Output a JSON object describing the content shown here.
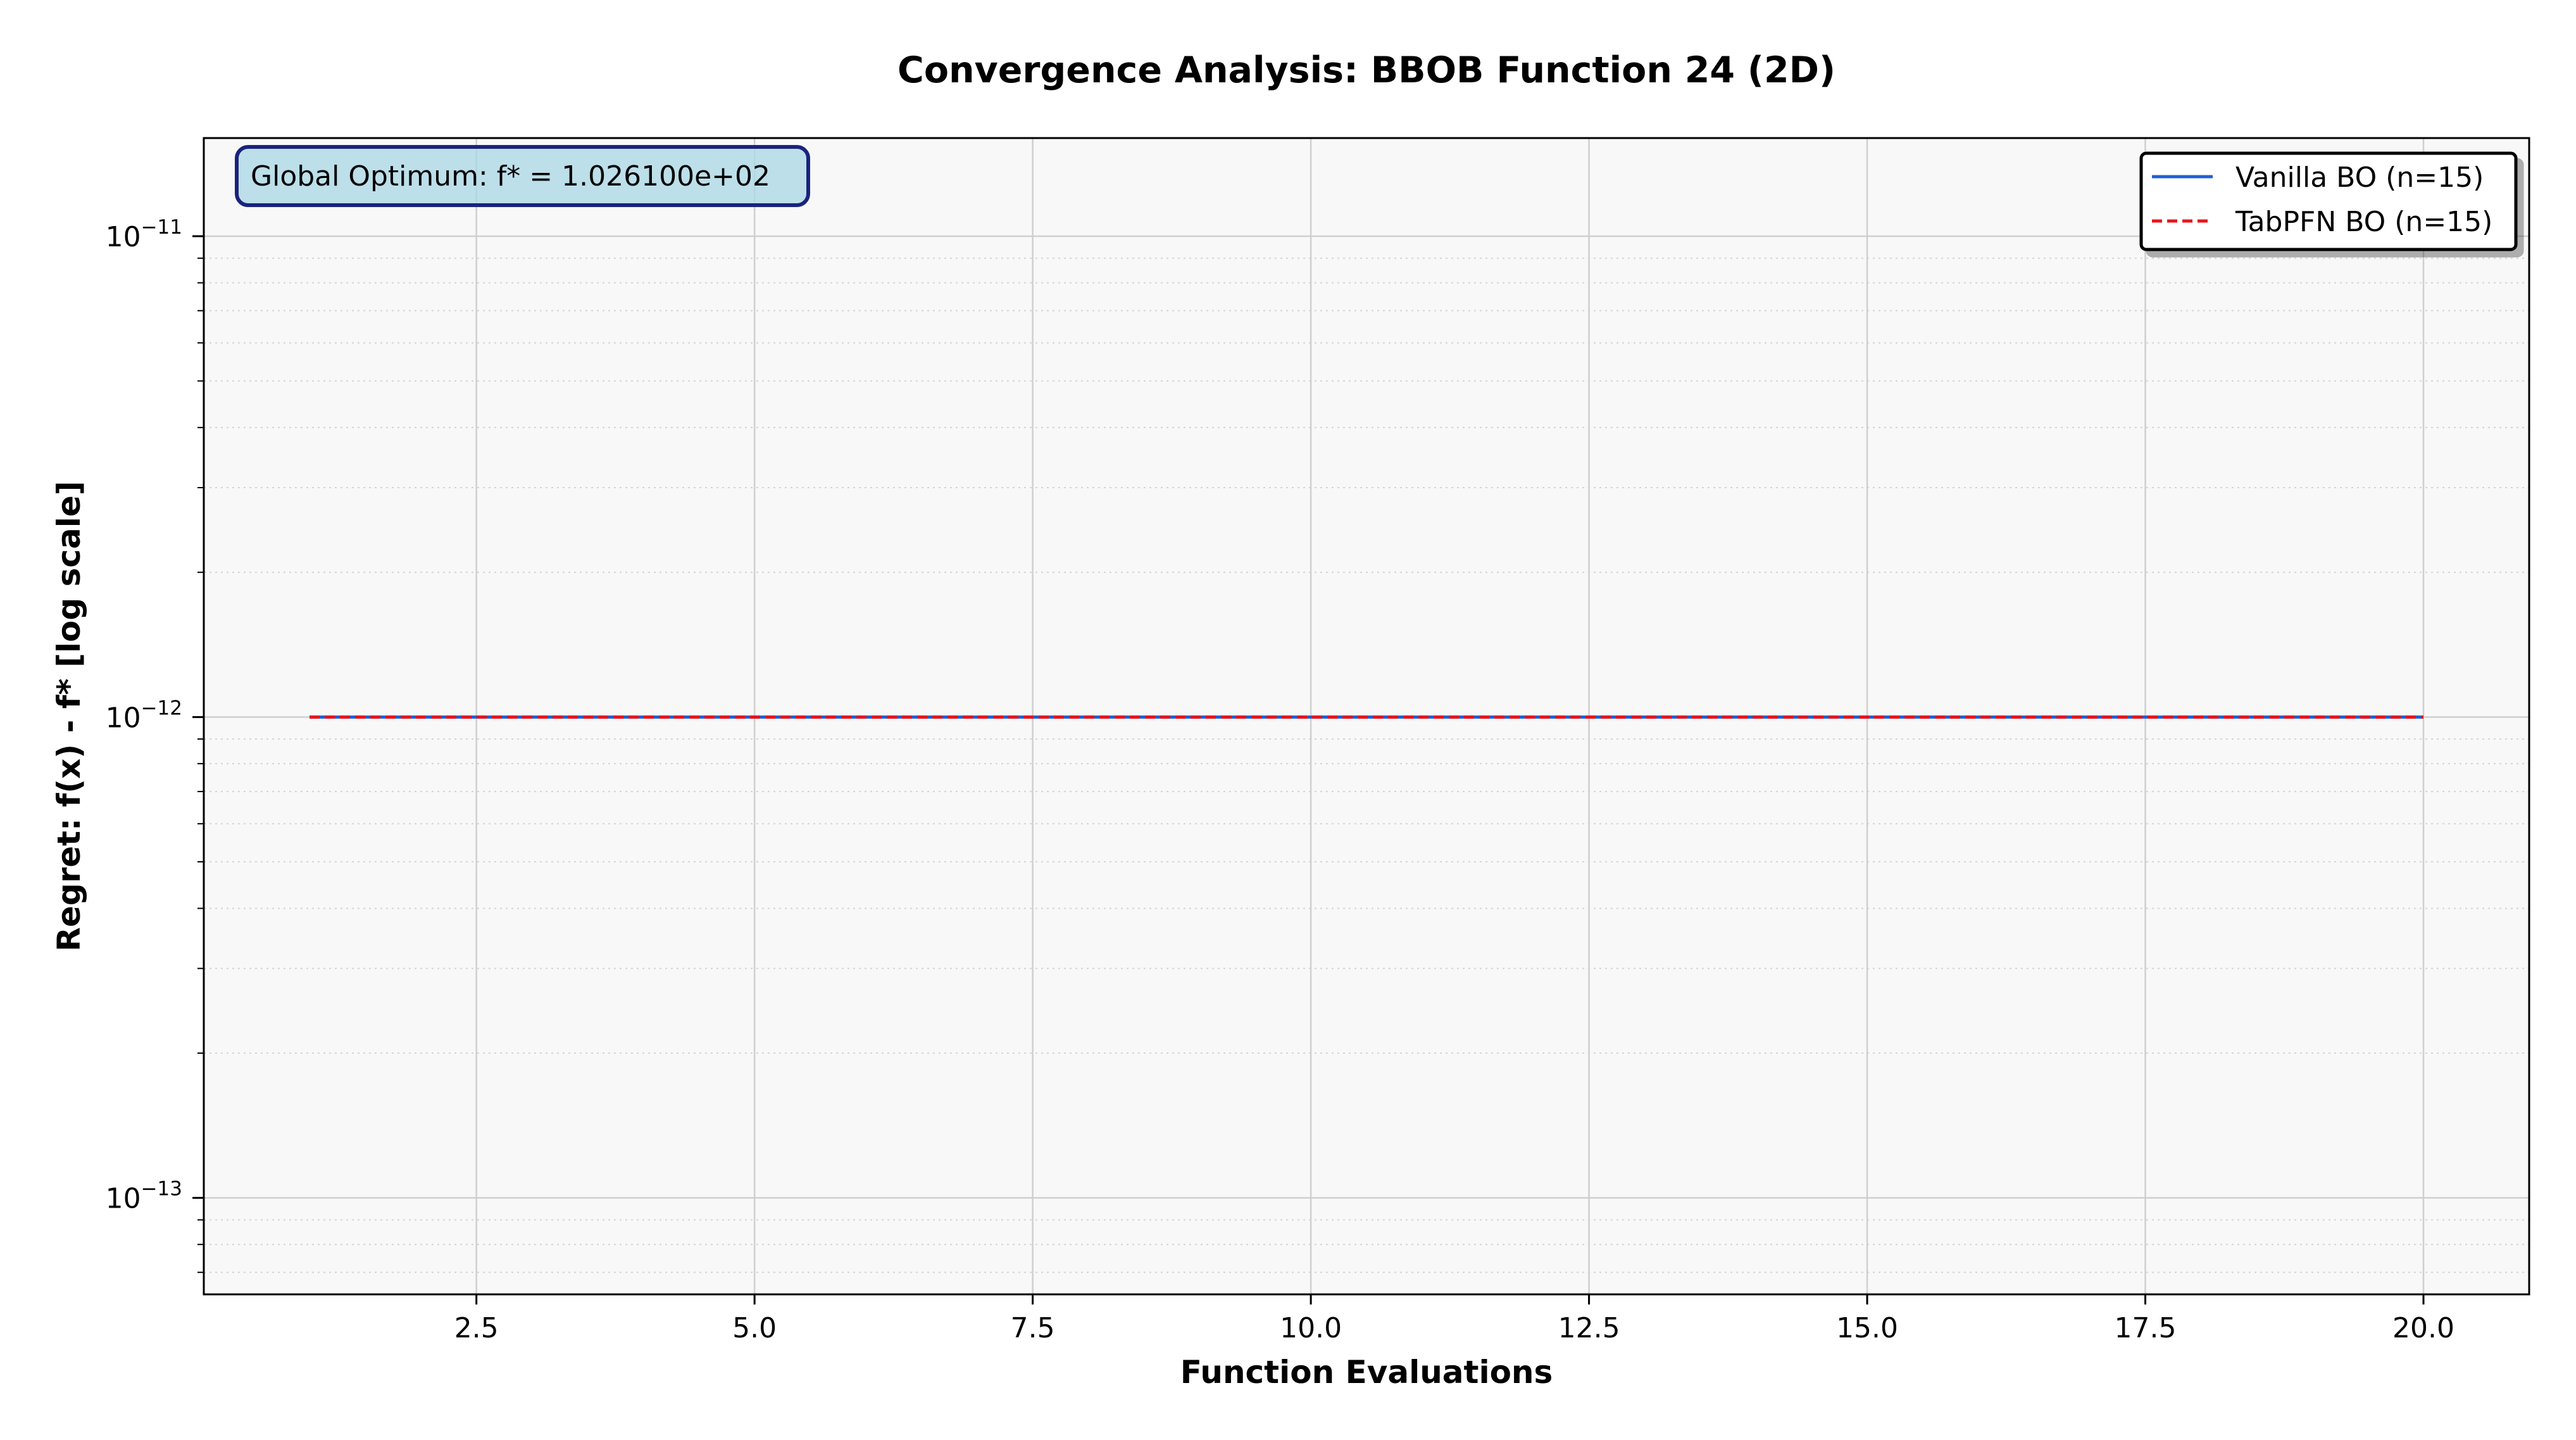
{
  "chart_data": {
    "type": "line",
    "title": "Convergence Analysis: BBOB Function 24 (2D)",
    "xlabel": "Function Evaluations",
    "ylabel": "Regret: f(x) - f* [log scale]",
    "yscale": "log",
    "xlim": [
      0.05,
      20.95
    ],
    "ylim": [
      6.3e-14,
      1.6e-11
    ],
    "x_ticks": [
      {
        "value": 2.5,
        "label": "2.5"
      },
      {
        "value": 5.0,
        "label": "5.0"
      },
      {
        "value": 7.5,
        "label": "7.5"
      },
      {
        "value": 10.0,
        "label": "10.0"
      },
      {
        "value": 12.5,
        "label": "12.5"
      },
      {
        "value": 15.0,
        "label": "15.0"
      },
      {
        "value": 17.5,
        "label": "17.5"
      },
      {
        "value": 20.0,
        "label": "20.0"
      }
    ],
    "y_ticks": [
      {
        "value": 1e-13,
        "base": "10",
        "exp": "−13"
      },
      {
        "value": 1e-12,
        "base": "10",
        "exp": "−12"
      },
      {
        "value": 1e-11,
        "base": "10",
        "exp": "−11"
      }
    ],
    "grid": true,
    "legend_position": "top-right",
    "annotation": "Global Optimum: f* = 1.026100e+02",
    "series": [
      {
        "name": "Vanilla BO (n=15)",
        "color": "#1f5fd6",
        "style": "solid",
        "x": [
          1,
          2,
          3,
          4,
          5,
          6,
          7,
          8,
          9,
          10,
          11,
          12,
          13,
          14,
          15,
          16,
          17,
          18,
          19,
          20
        ],
        "y": [
          1e-12,
          1e-12,
          1e-12,
          1e-12,
          1e-12,
          1e-12,
          1e-12,
          1e-12,
          1e-12,
          1e-12,
          1e-12,
          1e-12,
          1e-12,
          1e-12,
          1e-12,
          1e-12,
          1e-12,
          1e-12,
          1e-12,
          1e-12
        ]
      },
      {
        "name": "TabPFN BO (n=15)",
        "color": "#e8141b",
        "style": "dashed",
        "x": [
          1,
          2,
          3,
          4,
          5,
          6,
          7,
          8,
          9,
          10,
          11,
          12,
          13,
          14,
          15,
          16,
          17,
          18,
          19,
          20
        ],
        "y": [
          1e-12,
          1e-12,
          1e-12,
          1e-12,
          1e-12,
          1e-12,
          1e-12,
          1e-12,
          1e-12,
          1e-12,
          1e-12,
          1e-12,
          1e-12,
          1e-12,
          1e-12,
          1e-12,
          1e-12,
          1e-12,
          1e-12,
          1e-12
        ]
      }
    ]
  }
}
